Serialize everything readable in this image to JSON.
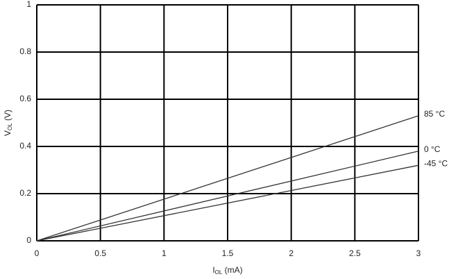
{
  "chart_data": {
    "type": "line",
    "x_label": [
      "I",
      "OL",
      " (mA)"
    ],
    "y_label": [
      "V",
      "OL",
      " (V)"
    ],
    "x": [
      0,
      3
    ],
    "series": [
      {
        "name": "85 °C",
        "color": "#333333",
        "values": [
          0,
          0.53
        ]
      },
      {
        "name": "0 °C",
        "color": "#333333",
        "values": [
          0,
          0.38
        ]
      },
      {
        "name": "-45 °C",
        "color": "#333333",
        "values": [
          0,
          0.32
        ]
      }
    ],
    "xlim": [
      0,
      3
    ],
    "xticks": [
      0,
      0.5,
      1,
      1.5,
      2,
      2.5,
      3
    ],
    "ylim": [
      0,
      1
    ],
    "yticks": [
      0,
      0.2,
      0.4,
      0.6,
      0.8,
      1
    ],
    "grid": true
  }
}
